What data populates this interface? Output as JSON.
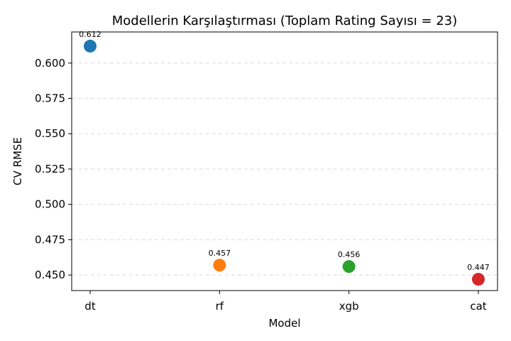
{
  "chart_data": {
    "type": "scatter",
    "title": "Modellerin Karşılaştırması (Toplam Rating Sayısı = 23)",
    "xlabel": "Model",
    "ylabel": "CV RMSE",
    "categories": [
      "dt",
      "rf",
      "xgb",
      "cat"
    ],
    "values": [
      0.612,
      0.457,
      0.456,
      0.447
    ],
    "data_labels": [
      "0.612",
      "0.457",
      "0.456",
      "0.447"
    ],
    "colors": [
      "#1f77b4",
      "#ff7f0e",
      "#2ca02c",
      "#d62728"
    ],
    "yticks": [
      "0.450",
      "0.475",
      "0.500",
      "0.525",
      "0.550",
      "0.575",
      "0.600"
    ],
    "ylim": [
      0.439,
      0.622
    ],
    "grid": "y-dashed",
    "legend": "none"
  }
}
